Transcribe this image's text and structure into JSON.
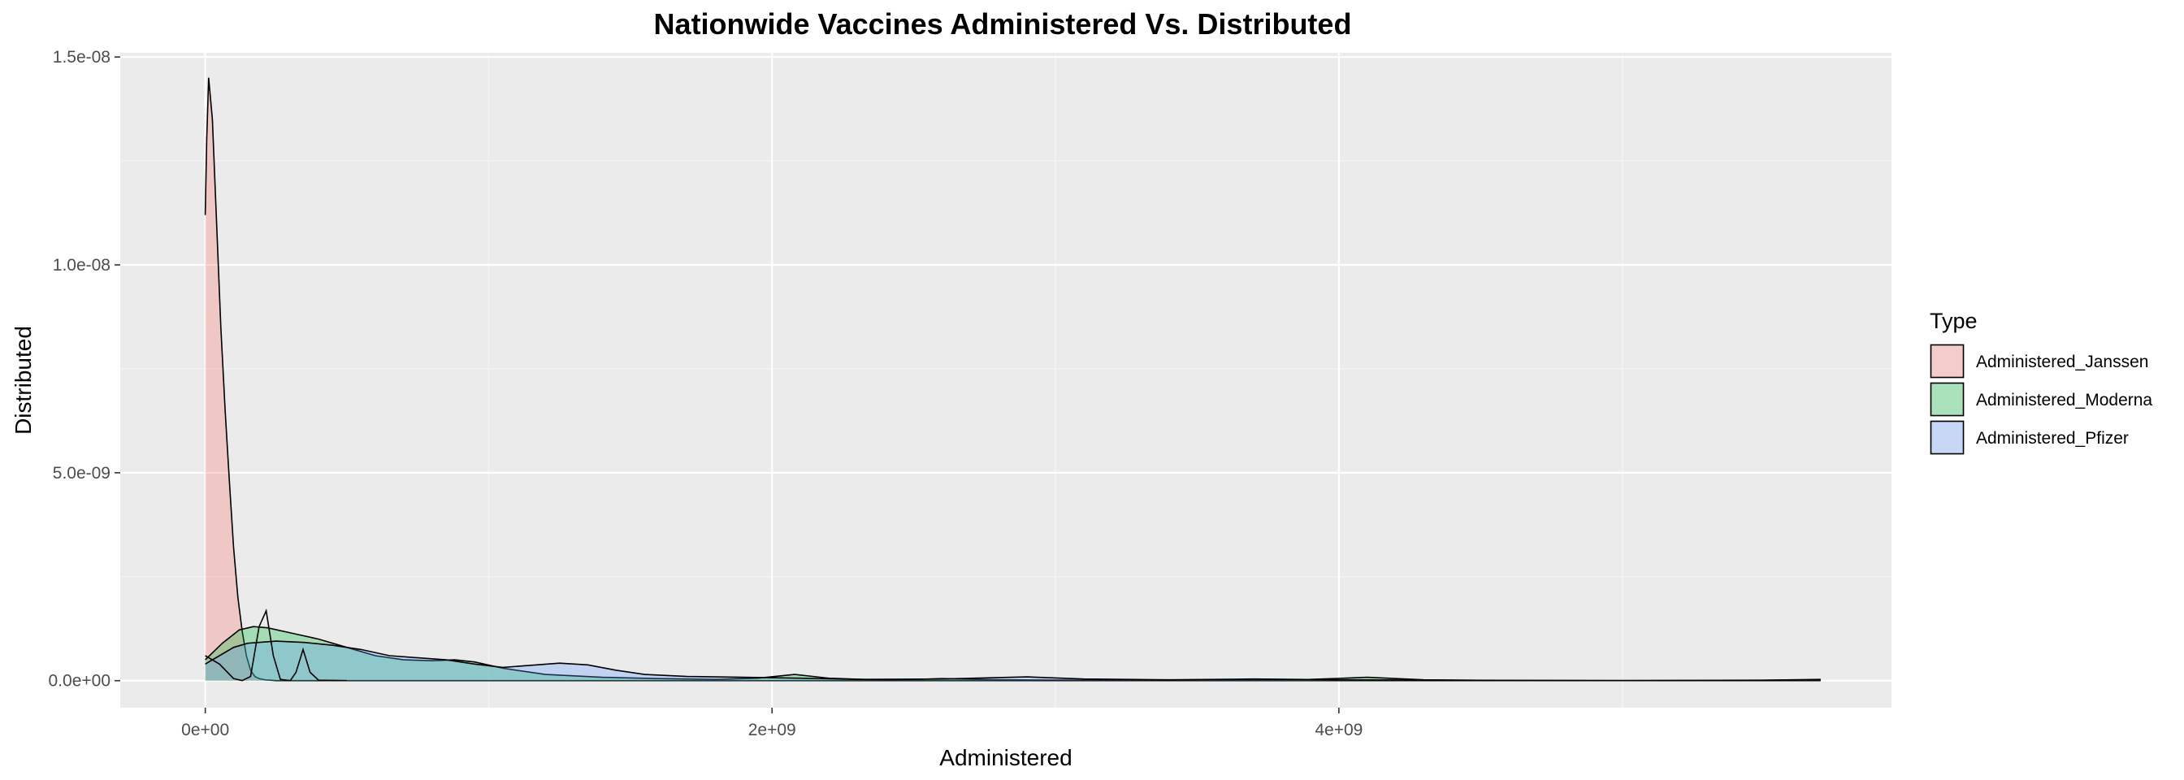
{
  "chart_data": {
    "type": "area",
    "title": "Nationwide Vaccines Administered Vs. Distributed",
    "xlabel": "Administered",
    "ylabel": "Distributed",
    "xlim": [
      -300000000,
      5950000000
    ],
    "ylim": [
      -6.5e-10,
      1.51e-08
    ],
    "x_ticks": [
      {
        "value": 0,
        "label": "0e+00"
      },
      {
        "value": 2000000000,
        "label": "2e+09"
      },
      {
        "value": 4000000000,
        "label": "4e+09"
      }
    ],
    "y_ticks": [
      {
        "value": 0,
        "label": "0.0e+00"
      },
      {
        "value": 5e-09,
        "label": "5.0e-09"
      },
      {
        "value": 1e-08,
        "label": "1.0e-08"
      },
      {
        "value": 1.5e-08,
        "label": "1.5e-08"
      }
    ],
    "grid": true,
    "legend": {
      "title": "Type",
      "position": "right"
    },
    "series": [
      {
        "name": "Administered_Janssen",
        "color": "#F8766D",
        "points": [
          [
            0,
            1.12e-08
          ],
          [
            5000000,
            1.3e-08
          ],
          [
            12000000,
            1.45e-08
          ],
          [
            25000000,
            1.35e-08
          ],
          [
            40000000,
            1.1e-08
          ],
          [
            55000000,
            8.5e-09
          ],
          [
            70000000,
            6.5e-09
          ],
          [
            85000000,
            4.8e-09
          ],
          [
            100000000,
            3.2e-09
          ],
          [
            115000000,
            2e-09
          ],
          [
            130000000,
            1.2e-09
          ],
          [
            145000000,
            6e-10
          ],
          [
            160000000,
            2.5e-10
          ],
          [
            175000000,
            1e-10
          ],
          [
            190000000,
            5e-11
          ],
          [
            210000000,
            2e-11
          ],
          [
            250000000,
            0
          ],
          [
            5700000000,
            0
          ]
        ]
      },
      {
        "name": "Administered_Moderna",
        "color": "#00BA38",
        "points": [
          [
            0,
            5e-10
          ],
          [
            60000000,
            9e-10
          ],
          [
            120000000,
            1.22e-09
          ],
          [
            170000000,
            1.3e-09
          ],
          [
            220000000,
            1.27e-09
          ],
          [
            300000000,
            1.15e-09
          ],
          [
            400000000,
            1e-09
          ],
          [
            500000000,
            8e-10
          ],
          [
            600000000,
            6e-10
          ],
          [
            700000000,
            5e-10
          ],
          [
            800000000,
            4.8e-10
          ],
          [
            880000000,
            5e-10
          ],
          [
            950000000,
            4.5e-10
          ],
          [
            1050000000,
            3e-10
          ],
          [
            1200000000,
            1.5e-10
          ],
          [
            1400000000,
            8e-11
          ],
          [
            1600000000,
            5e-11
          ],
          [
            1800000000,
            3e-11
          ],
          [
            1950000000,
            6e-11
          ],
          [
            2080000000,
            1.5e-10
          ],
          [
            2200000000,
            6e-11
          ],
          [
            2400000000,
            1e-11
          ],
          [
            2600000000,
            5e-11
          ],
          [
            2800000000,
            2e-11
          ],
          [
            3100000000,
            1e-11
          ],
          [
            3600000000,
            2e-11
          ],
          [
            3900000000,
            3e-11
          ],
          [
            4100000000,
            8e-11
          ],
          [
            4300000000,
            2e-11
          ],
          [
            4600000000,
            0
          ],
          [
            5400000000,
            0
          ],
          [
            5600000000,
            2e-11
          ],
          [
            5700000000,
            3e-11
          ]
        ]
      },
      {
        "name": "Administered_Pfizer",
        "color": "#619CFF",
        "points": [
          [
            0,
            4e-10
          ],
          [
            50000000,
            6e-10
          ],
          [
            100000000,
            8e-10
          ],
          [
            150000000,
            9e-10
          ],
          [
            250000000,
            9.5e-10
          ],
          [
            350000000,
            9.2e-10
          ],
          [
            450000000,
            8.5e-10
          ],
          [
            550000000,
            7.5e-10
          ],
          [
            650000000,
            6e-10
          ],
          [
            750000000,
            5.5e-10
          ],
          [
            850000000,
            5e-10
          ],
          [
            950000000,
            4e-10
          ],
          [
            1050000000,
            3.2e-10
          ],
          [
            1150000000,
            3.7e-10
          ],
          [
            1250000000,
            4.2e-10
          ],
          [
            1350000000,
            3.8e-10
          ],
          [
            1450000000,
            2.5e-10
          ],
          [
            1550000000,
            1.5e-10
          ],
          [
            1700000000,
            1e-10
          ],
          [
            1900000000,
            8e-11
          ],
          [
            2100000000,
            6e-11
          ],
          [
            2300000000,
            3e-11
          ],
          [
            2600000000,
            4e-11
          ],
          [
            2900000000,
            9e-11
          ],
          [
            3100000000,
            4e-11
          ],
          [
            3400000000,
            2e-11
          ],
          [
            3700000000,
            4e-11
          ],
          [
            4000000000,
            2e-11
          ],
          [
            4400000000,
            1e-11
          ],
          [
            5000000000,
            0
          ],
          [
            5500000000,
            1e-11
          ],
          [
            5700000000,
            2e-11
          ]
        ]
      }
    ],
    "extra_line_points": [
      [
        0,
        6e-10
      ],
      [
        50000000,
        4e-10
      ],
      [
        100000000,
        5e-11
      ],
      [
        130000000,
        0
      ],
      [
        160000000,
        1e-10
      ],
      [
        190000000,
        1.3e-09
      ],
      [
        215000000,
        1.68e-09
      ],
      [
        240000000,
        6e-10
      ],
      [
        265000000,
        3e-11
      ],
      [
        300000000,
        0
      ],
      [
        320000000,
        2e-10
      ],
      [
        345000000,
        7.5e-10
      ],
      [
        370000000,
        2e-10
      ],
      [
        400000000,
        1e-11
      ],
      [
        500000000,
        0
      ]
    ]
  }
}
